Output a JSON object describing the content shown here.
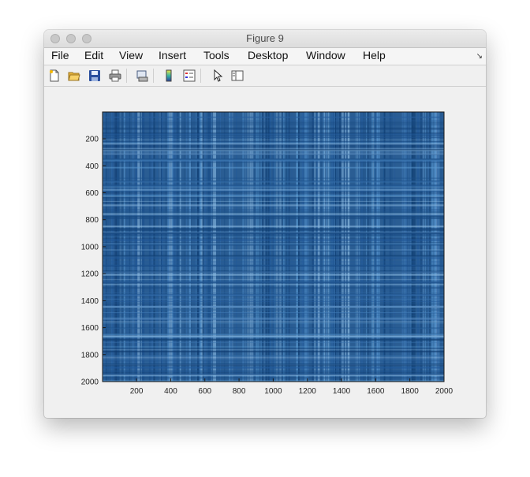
{
  "window": {
    "title": "Figure 9"
  },
  "menu": {
    "items": [
      "File",
      "Edit",
      "View",
      "Insert",
      "Tools",
      "Desktop",
      "Window",
      "Help"
    ]
  },
  "toolbar": {
    "icons": [
      "new-figure-icon",
      "open-file-icon",
      "save-icon",
      "print-icon",
      "print-preview-icon",
      "colorbar-icon",
      "legend-icon",
      "pointer-icon",
      "plot-tools-icon"
    ]
  },
  "colors": {
    "image_base": "#2a5d93",
    "image_dark": "#0d3a6e",
    "image_light": "#5a9ad1"
  },
  "chart_data": {
    "type": "heatmap",
    "title": "",
    "xlabel": "",
    "ylabel": "",
    "xlim": [
      1,
      2000
    ],
    "ylim": [
      1,
      2000
    ],
    "y_reversed": true,
    "x_ticks": [
      "200",
      "400",
      "600",
      "800",
      "1000",
      "1200",
      "1400",
      "1600",
      "1800",
      "2000"
    ],
    "y_ticks": [
      "200",
      "400",
      "600",
      "800",
      "1000",
      "1200",
      "1400",
      "1600",
      "1800",
      "2000"
    ],
    "colormap": "blue-shades",
    "grid": false
  }
}
